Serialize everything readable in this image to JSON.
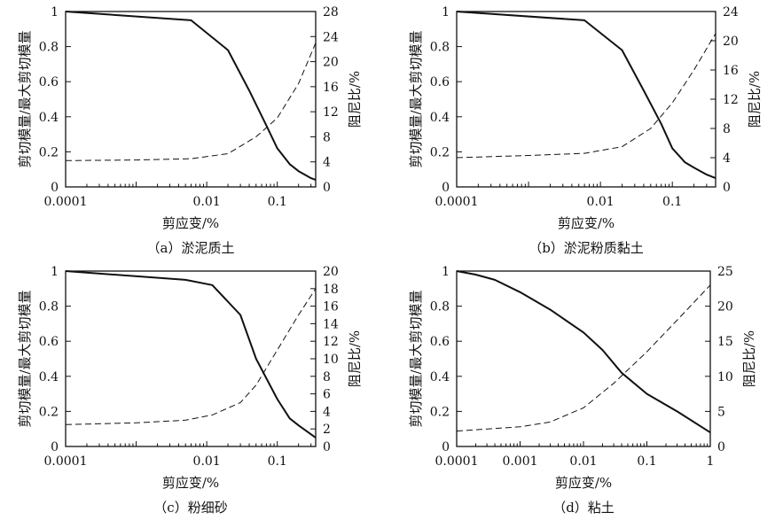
{
  "figure": {
    "colors": {
      "line": "#111111",
      "background": "#ffffff"
    }
  },
  "chart_data": [
    {
      "type": "line",
      "caption": "（a）淤泥质土",
      "xlabel": "剪应变/%",
      "ylabel_left": "剪切模量/最大剪切模量",
      "ylabel_right": "阻尼比/%",
      "x_scale": "log",
      "xlim": [
        0.0001,
        0.35
      ],
      "x_major_ticks": [
        0.0001,
        0.01,
        0.1
      ],
      "x_tick_labels": [
        "0.0001",
        "0.01",
        "0.1"
      ],
      "ylim_left": [
        0,
        1
      ],
      "y_left_ticks": [
        0,
        0.2,
        0.4,
        0.6,
        0.8,
        1
      ],
      "y_left_tick_labels": [
        "0",
        "0.2",
        "0.4",
        "0.6",
        "0.8",
        "1"
      ],
      "ylim_right": [
        0,
        28
      ],
      "y_right_ticks": [
        0,
        4,
        8,
        12,
        16,
        20,
        24,
        28
      ],
      "y_right_tick_labels": [
        "0",
        "4",
        "8",
        "12",
        "16",
        "20",
        "24",
        "28"
      ],
      "grid": false,
      "series": [
        {
          "axis": "left",
          "style": "solid",
          "x": [
            0.0001,
            0.006,
            0.02,
            0.04,
            0.07,
            0.1,
            0.15,
            0.2,
            0.3,
            0.35
          ],
          "y": [
            1.0,
            0.95,
            0.78,
            0.55,
            0.35,
            0.22,
            0.13,
            0.09,
            0.05,
            0.04
          ]
        },
        {
          "axis": "right",
          "style": "dashed",
          "x": [
            0.0001,
            0.001,
            0.006,
            0.02,
            0.05,
            0.1,
            0.2,
            0.35
          ],
          "y": [
            4.2,
            4.3,
            4.5,
            5.3,
            8.0,
            11.0,
            16.5,
            23.0
          ]
        }
      ]
    },
    {
      "type": "line",
      "caption": "（b）淤泥粉质黏土",
      "xlabel": "剪应变/%",
      "ylabel_left": "剪切模量/最大剪切模量",
      "ylabel_right": "阻尼比/%",
      "x_scale": "log",
      "xlim": [
        0.0001,
        0.4
      ],
      "x_major_ticks": [
        0.0001,
        0.01,
        0.1
      ],
      "x_tick_labels": [
        "0.0001",
        "0.01",
        "0.1"
      ],
      "ylim_left": [
        0,
        1
      ],
      "y_left_ticks": [
        0,
        0.2,
        0.4,
        0.6,
        0.8,
        1
      ],
      "y_left_tick_labels": [
        "0",
        "0.2",
        "0.4",
        "0.6",
        "0.8",
        "1"
      ],
      "ylim_right": [
        0,
        24
      ],
      "y_right_ticks": [
        0,
        4,
        8,
        12,
        16,
        20,
        24
      ],
      "y_right_tick_labels": [
        "0",
        "4",
        "8",
        "12",
        "16",
        "20",
        "24"
      ],
      "grid": false,
      "series": [
        {
          "axis": "left",
          "style": "solid",
          "x": [
            0.0001,
            0.006,
            0.02,
            0.04,
            0.07,
            0.1,
            0.15,
            0.2,
            0.3,
            0.4
          ],
          "y": [
            1.0,
            0.95,
            0.78,
            0.55,
            0.36,
            0.22,
            0.14,
            0.11,
            0.07,
            0.05
          ]
        },
        {
          "axis": "right",
          "style": "dashed",
          "x": [
            0.0001,
            0.001,
            0.006,
            0.02,
            0.05,
            0.1,
            0.2,
            0.4
          ],
          "y": [
            4.0,
            4.3,
            4.6,
            5.5,
            8.0,
            11.5,
            16.0,
            21.0
          ]
        }
      ]
    },
    {
      "type": "line",
      "caption": "（c）粉细砂",
      "xlabel": "剪应变/%",
      "ylabel_left": "剪切模量/最大剪切模量",
      "ylabel_right": "阻尼比/%",
      "x_scale": "log",
      "xlim": [
        0.0001,
        0.35
      ],
      "x_major_ticks": [
        0.0001,
        0.01,
        0.1
      ],
      "x_tick_labels": [
        "0.0001",
        "0.01",
        "0.1"
      ],
      "ylim_left": [
        0,
        1
      ],
      "y_left_ticks": [
        0,
        0.2,
        0.4,
        0.6,
        0.8,
        1
      ],
      "y_left_tick_labels": [
        "0",
        "0.2",
        "0.4",
        "0.6",
        "0.8",
        "1"
      ],
      "ylim_right": [
        0,
        20
      ],
      "y_right_ticks": [
        0,
        2,
        4,
        6,
        8,
        10,
        12,
        14,
        16,
        18,
        20
      ],
      "y_right_tick_labels": [
        "0",
        "2",
        "4",
        "6",
        "8",
        "10",
        "12",
        "14",
        "16",
        "18",
        "20"
      ],
      "grid": false,
      "series": [
        {
          "axis": "left",
          "style": "solid",
          "x": [
            0.0001,
            0.005,
            0.012,
            0.03,
            0.05,
            0.1,
            0.15,
            0.2,
            0.35
          ],
          "y": [
            1.0,
            0.95,
            0.92,
            0.75,
            0.5,
            0.27,
            0.16,
            0.12,
            0.05
          ]
        },
        {
          "axis": "right",
          "style": "dashed",
          "x": [
            0.0001,
            0.001,
            0.005,
            0.012,
            0.03,
            0.05,
            0.1,
            0.2,
            0.35
          ],
          "y": [
            2.5,
            2.7,
            3.0,
            3.6,
            5.0,
            7.0,
            11.0,
            15.0,
            18.0
          ]
        }
      ]
    },
    {
      "type": "line",
      "caption": "（d）粘土",
      "xlabel": "剪应变/%",
      "ylabel_left": "剪切模量/最大剪切模量",
      "ylabel_right": "阻尼比/%",
      "x_scale": "log",
      "xlim": [
        0.0001,
        1
      ],
      "x_major_ticks": [
        0.0001,
        0.001,
        0.01,
        0.1,
        1
      ],
      "x_tick_labels": [
        "0.0001",
        "0.001",
        "0.01",
        "0.1",
        "1"
      ],
      "ylim_left": [
        0,
        1
      ],
      "y_left_ticks": [
        0,
        0.2,
        0.4,
        0.6,
        0.8,
        1
      ],
      "y_left_tick_labels": [
        "0",
        "0.2",
        "0.4",
        "0.6",
        "0.8",
        "1"
      ],
      "ylim_right": [
        0,
        25
      ],
      "y_right_ticks": [
        0,
        5,
        10,
        15,
        20,
        25
      ],
      "y_right_tick_labels": [
        "0",
        "5",
        "10",
        "15",
        "20",
        "25"
      ],
      "grid": false,
      "series": [
        {
          "axis": "left",
          "style": "solid",
          "x": [
            0.0001,
            0.0002,
            0.0004,
            0.001,
            0.003,
            0.01,
            0.02,
            0.04,
            0.1,
            0.3,
            1.0
          ],
          "y": [
            1.0,
            0.98,
            0.95,
            0.88,
            0.78,
            0.65,
            0.55,
            0.42,
            0.3,
            0.2,
            0.08
          ]
        },
        {
          "axis": "right",
          "style": "dashed",
          "x": [
            0.0001,
            0.001,
            0.003,
            0.01,
            0.03,
            0.1,
            0.3,
            1.0
          ],
          "y": [
            2.2,
            2.8,
            3.5,
            5.5,
            9.0,
            13.5,
            18.0,
            23.0
          ]
        }
      ]
    }
  ]
}
